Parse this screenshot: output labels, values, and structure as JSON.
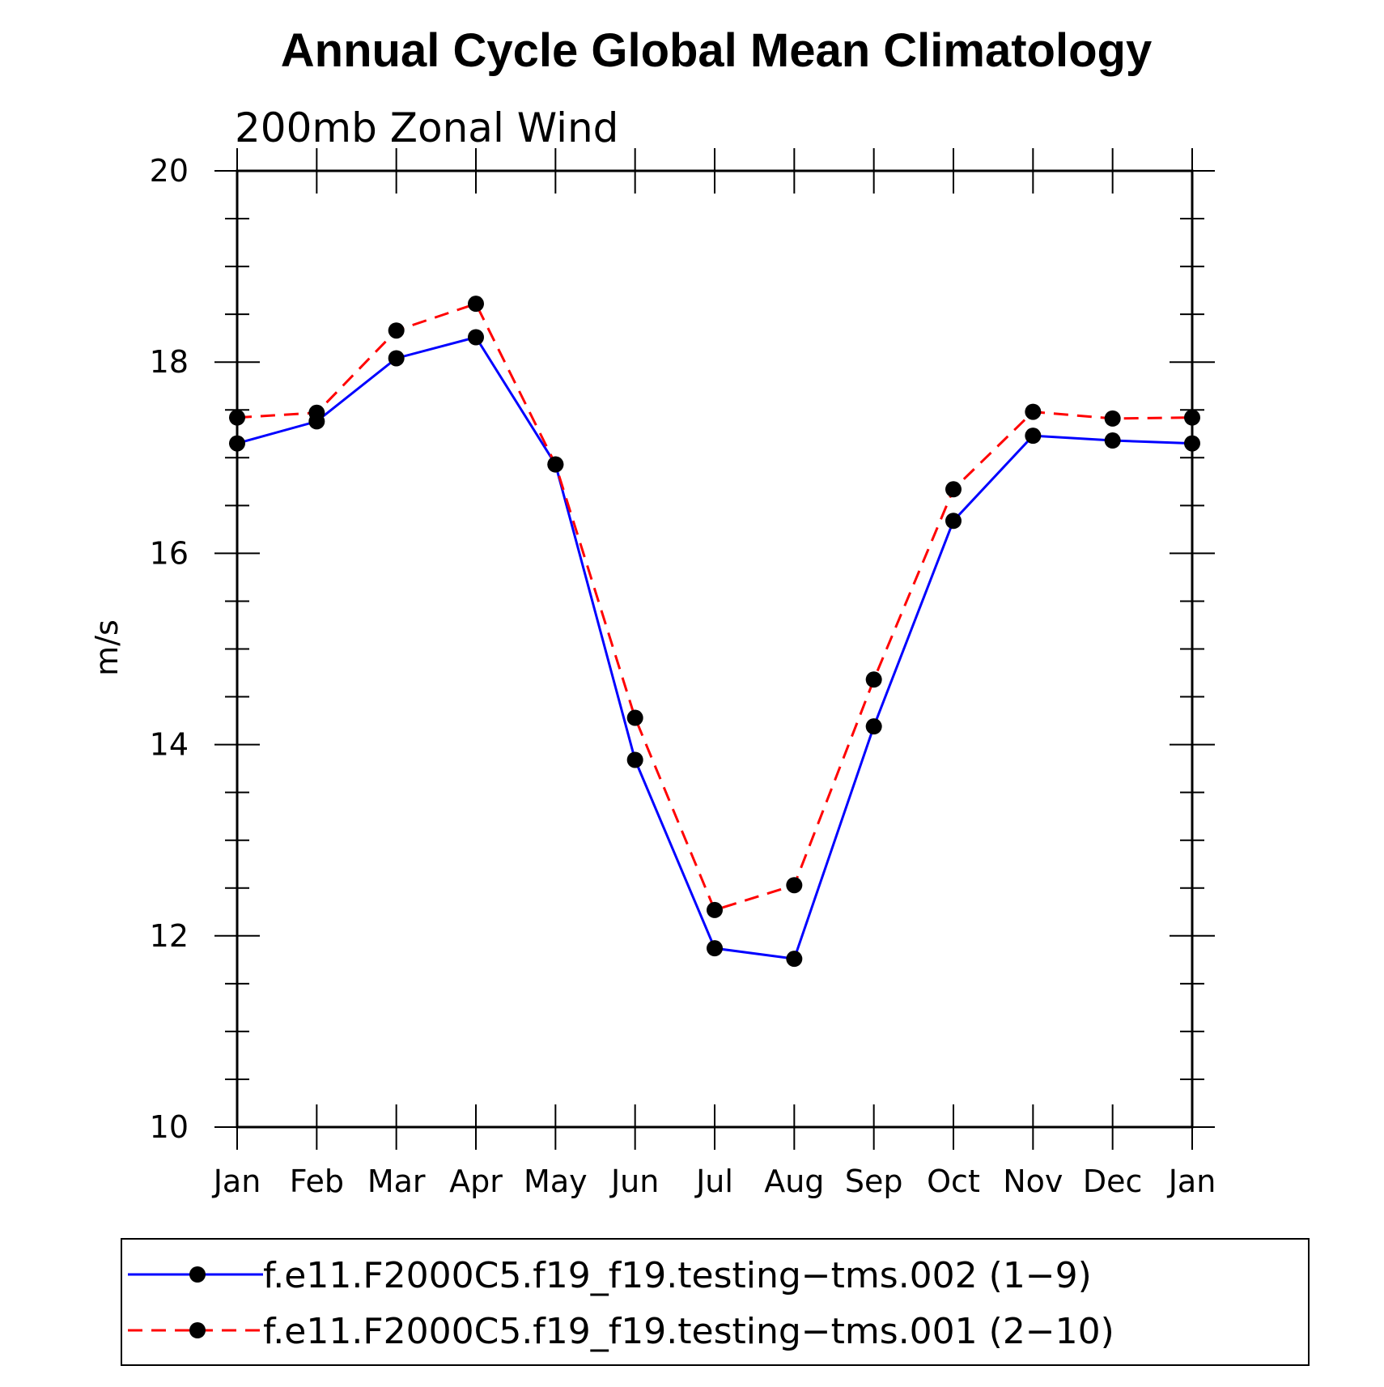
{
  "chart_data": {
    "type": "line",
    "title": "Annual Cycle Global Mean Climatology",
    "subtitle": "200mb Zonal Wind",
    "xlabel": "",
    "ylabel": "m/s",
    "ylim": [
      10,
      20
    ],
    "yticks": [
      10,
      12,
      14,
      16,
      18,
      20
    ],
    "yminor_step": 0.5,
    "categories": [
      "Jan",
      "Feb",
      "Mar",
      "Apr",
      "May",
      "Jun",
      "Jul",
      "Aug",
      "Sep",
      "Oct",
      "Nov",
      "Dec",
      "Jan"
    ],
    "grid": false,
    "legend_position": "bottom",
    "series": [
      {
        "name": "f.e11.F2000C5.f19_f19.testing−tms.002 (1−9)",
        "color": "#0000ff",
        "style": "solid",
        "marker": "filled-circle",
        "values": [
          17.15,
          17.38,
          18.04,
          18.26,
          16.93,
          13.84,
          11.87,
          11.76,
          14.19,
          16.34,
          17.23,
          17.18,
          17.15
        ]
      },
      {
        "name": "f.e11.F2000C5.f19_f19.testing−tms.001 (2−10)",
        "color": "#ff0000",
        "style": "dashed",
        "marker": "filled-circle",
        "values": [
          17.42,
          17.47,
          18.33,
          18.61,
          16.93,
          14.28,
          12.27,
          12.53,
          14.68,
          16.67,
          17.48,
          17.41,
          17.42
        ]
      }
    ]
  }
}
